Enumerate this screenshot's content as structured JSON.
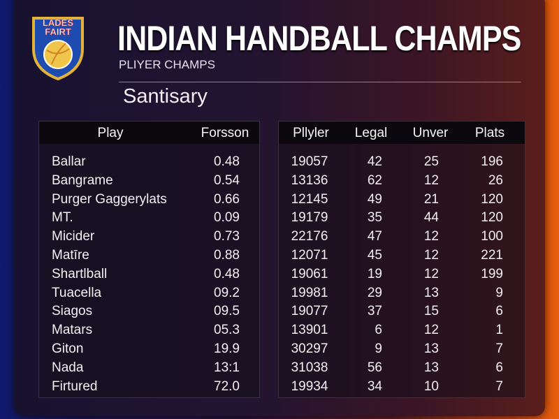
{
  "header": {
    "logo_text": [
      "LADES",
      "FAIRT"
    ],
    "title": "INDIAN HANDBALL CHAMPS",
    "subtitle": "PLIYER CHAMPS"
  },
  "section_title": "Santisary",
  "left_table": {
    "columns": [
      "Play",
      "Forsson"
    ],
    "rows": [
      [
        "Ballar",
        "0.48"
      ],
      [
        "Bangrame",
        "0.54"
      ],
      [
        "Purger Gaggerylats",
        "0.66"
      ],
      [
        "MT.",
        "0.09"
      ],
      [
        "Micider",
        "0.73"
      ],
      [
        "Matīre",
        "0.88"
      ],
      [
        "Shartlball",
        "0.48"
      ],
      [
        "Tuacella",
        "09.2"
      ],
      [
        "Siagos",
        "09.5"
      ],
      [
        "Matars",
        "05.3"
      ],
      [
        "Giton",
        "19.9"
      ],
      [
        "Nada",
        "13:1"
      ],
      [
        "Firtured",
        "72.0"
      ]
    ]
  },
  "right_table": {
    "columns": [
      "Pllyler",
      "Legal",
      "Unver",
      "Plats"
    ],
    "rows": [
      [
        "19057",
        "42",
        "25",
        "196"
      ],
      [
        "13136",
        "62",
        "12",
        "26"
      ],
      [
        "12145",
        "49",
        "21",
        "120"
      ],
      [
        "19179",
        "35",
        "44",
        "120"
      ],
      [
        "22176",
        "47",
        "12",
        "100"
      ],
      [
        "12071",
        "45",
        "12",
        "221"
      ],
      [
        "19061",
        "19",
        "12",
        "199"
      ],
      [
        "19981",
        "29",
        "13",
        "9"
      ],
      [
        "19077",
        "37",
        "15",
        "6"
      ],
      [
        "13901",
        "6",
        "12",
        "1"
      ],
      [
        "30297",
        "9",
        "13",
        "7"
      ],
      [
        "31038",
        "56",
        "13",
        "6"
      ],
      [
        "19934",
        "34",
        "10",
        "7"
      ]
    ]
  }
}
